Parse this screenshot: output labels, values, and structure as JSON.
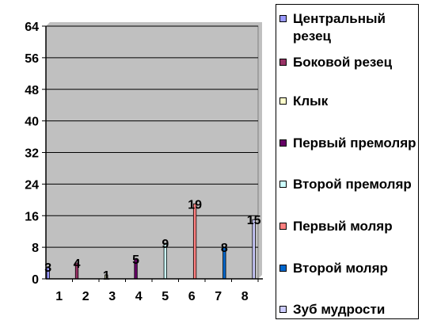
{
  "chart_data": {
    "type": "bar",
    "categories": [
      "1",
      "2",
      "3",
      "4",
      "5",
      "6",
      "7",
      "8"
    ],
    "series": [
      {
        "name": "Центральный резец",
        "values": [
          3,
          0,
          0,
          0,
          0,
          0,
          0,
          0
        ],
        "color": "#9999ff"
      },
      {
        "name": "Боковой резец",
        "values": [
          0,
          4,
          0,
          0,
          0,
          0,
          0,
          0
        ],
        "color": "#993366"
      },
      {
        "name": "Клык",
        "values": [
          0,
          0,
          1,
          0,
          0,
          0,
          0,
          0
        ],
        "color": "#ffffcc"
      },
      {
        "name": "Первый премоляр",
        "values": [
          0,
          0,
          0,
          5,
          0,
          0,
          0,
          0
        ],
        "color": "#660066"
      },
      {
        "name": "Второй премоляр",
        "values": [
          0,
          0,
          0,
          0,
          9,
          0,
          0,
          0
        ],
        "color": "#ccffff"
      },
      {
        "name": "Первый моляр",
        "values": [
          0,
          0,
          0,
          0,
          0,
          19,
          0,
          0
        ],
        "color": "#ff8080"
      },
      {
        "name": "Второй моляр",
        "values": [
          0,
          0,
          0,
          0,
          0,
          0,
          8,
          0
        ],
        "color": "#0066cc"
      },
      {
        "name": "Зуб мудрости",
        "values": [
          0,
          0,
          0,
          0,
          0,
          0,
          0,
          15
        ],
        "color": "#ccccff"
      }
    ],
    "yticks": [
      "0",
      "8",
      "16",
      "24",
      "32",
      "40",
      "48",
      "56",
      "64"
    ],
    "ylim": [
      0,
      64
    ],
    "grid": true,
    "plot_background": "#c0c0c0",
    "legend_position": "right"
  }
}
